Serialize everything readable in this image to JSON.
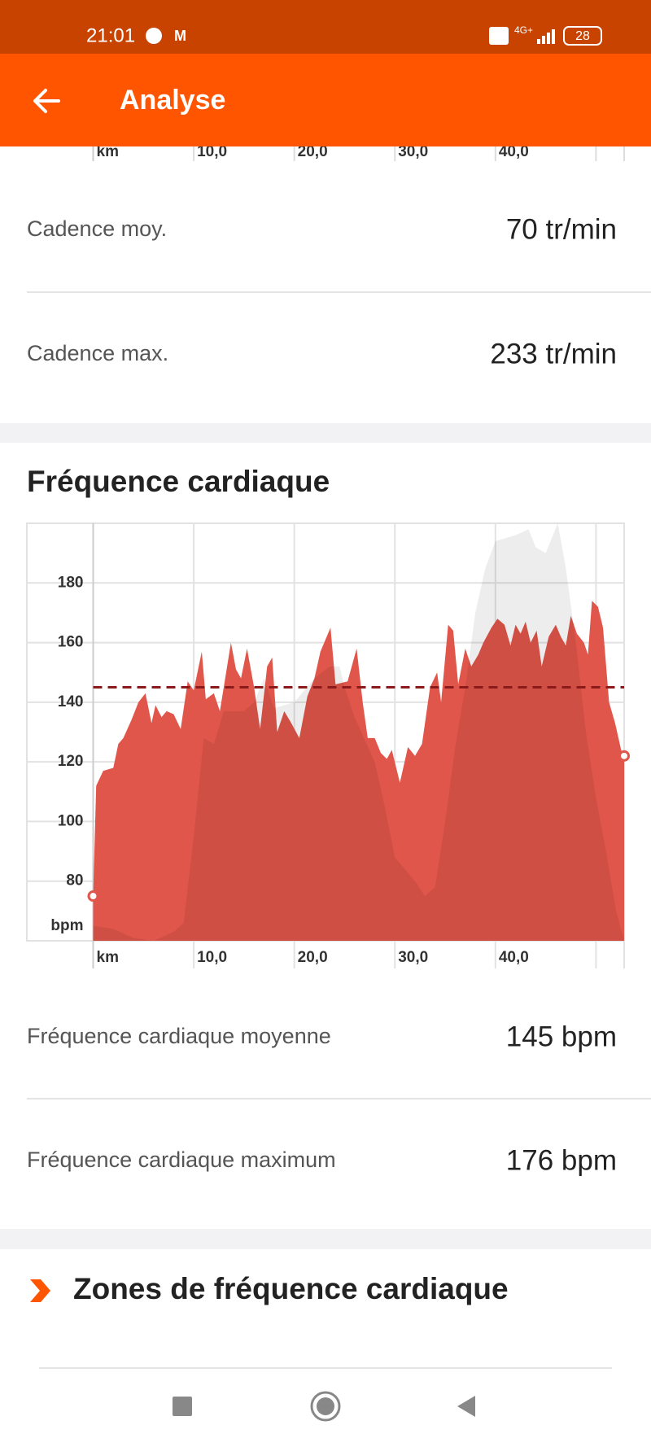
{
  "status_bar": {
    "time": "21:01",
    "network": "4G+",
    "battery": "28"
  },
  "header": {
    "title": "Analyse"
  },
  "previous_chart_axis": {
    "unit": "km",
    "ticks": [
      {
        "value": 10,
        "label": "10,0"
      },
      {
        "value": 20,
        "label": "20,0"
      },
      {
        "value": 30,
        "label": "30,0"
      },
      {
        "value": 40,
        "label": "40,0"
      }
    ]
  },
  "cadence_stats": [
    {
      "label": "Cadence moy.",
      "value": "70 tr/min"
    },
    {
      "label": "Cadence max.",
      "value": "233 tr/min"
    }
  ],
  "heart_rate": {
    "title": "Fréquence cardiaque",
    "chart_data": {
      "type": "area",
      "xlim": [
        0,
        52.8
      ],
      "ylim": [
        60,
        200
      ],
      "xlabel": "km",
      "ylabel": "bpm",
      "xticks": [
        {
          "value": 10,
          "label": "10,0"
        },
        {
          "value": 20,
          "label": "20,0"
        },
        {
          "value": 30,
          "label": "30,0"
        },
        {
          "value": 40,
          "label": "40,0"
        }
      ],
      "xgrid_extra": [
        50
      ],
      "yticks": [
        80,
        100,
        120,
        140,
        160,
        180
      ],
      "grid": true,
      "average": 145,
      "average_color": "#8b1a1a",
      "series": [
        {
          "color": "#e0564b",
          "x": [
            0,
            0.3,
            1,
            2,
            2.5,
            3,
            3.8,
            4.5,
            5.2,
            5.8,
            6.2,
            6.8,
            7.3,
            8,
            8.7,
            9.4,
            10,
            10.8,
            11.2,
            12,
            12.6,
            13.7,
            14.2,
            14.7,
            15.3,
            16,
            16.6,
            17.3,
            17.8,
            18.3,
            19,
            19.7,
            20.5,
            21.3,
            22,
            22.6,
            23.6,
            24.1,
            25.3,
            26.2,
            26.8,
            27.3,
            28,
            28.6,
            29.2,
            29.7,
            30.5,
            31.3,
            32,
            32.7,
            33.5,
            34.2,
            34.6,
            35.3,
            35.8,
            36.3,
            37,
            37.6,
            38.3,
            38.8,
            39.6,
            40.2,
            40.9,
            41.5,
            42,
            42.5,
            43,
            43.5,
            44.1,
            44.6,
            45.3,
            46,
            46.5,
            47,
            47.5,
            48.1,
            48.8,
            49.2,
            49.6,
            50.2,
            50.7,
            51.3,
            51.9,
            52.5,
            52.8
          ],
          "values": [
            75,
            112,
            117,
            118,
            126,
            128,
            134,
            140,
            143,
            133,
            139,
            135,
            137,
            136,
            131,
            147,
            144,
            157,
            141,
            143,
            137,
            160,
            151,
            148,
            158,
            145,
            131,
            152,
            155,
            130,
            137,
            133,
            128,
            142,
            148,
            157,
            165,
            146,
            147,
            158,
            140,
            128,
            128,
            123,
            121,
            124,
            113,
            125,
            122,
            126,
            145,
            150,
            140,
            166,
            164,
            146,
            158,
            152,
            156,
            160,
            165,
            168,
            166,
            159,
            166,
            163,
            167,
            160,
            164,
            152,
            162,
            166,
            162,
            159,
            169,
            163,
            160,
            156,
            174,
            172,
            165,
            140,
            133,
            124,
            122
          ]
        },
        {
          "color": "#000000",
          "x": [
            0,
            2,
            4,
            6,
            8,
            9,
            10,
            11,
            12,
            13,
            15,
            16,
            17,
            18,
            20,
            22,
            23.5,
            24.5,
            25,
            26,
            28,
            29,
            30,
            32,
            33,
            34,
            35,
            36,
            37,
            38,
            39,
            40,
            42,
            43.3,
            44,
            45,
            46.2,
            47,
            48,
            49,
            50,
            51,
            52,
            52.8
          ],
          "values": [
            65,
            64,
            61,
            60,
            63,
            66,
            95,
            128,
            126,
            137,
            137,
            140,
            148,
            138,
            140,
            148,
            152,
            152,
            145,
            135,
            120,
            105,
            88,
            80,
            75,
            78,
            100,
            125,
            145,
            170,
            185,
            194,
            196,
            198,
            192,
            190,
            200,
            185,
            160,
            130,
            108,
            90,
            70,
            60
          ]
        }
      ]
    }
  },
  "heart_rate_stats": [
    {
      "label": "Fréquence cardiaque moyenne",
      "value": "145 bpm"
    },
    {
      "label": "Fréquence cardiaque maximum",
      "value": "176 bpm"
    }
  ],
  "zones": {
    "title": "Zones de fréquence cardiaque"
  }
}
